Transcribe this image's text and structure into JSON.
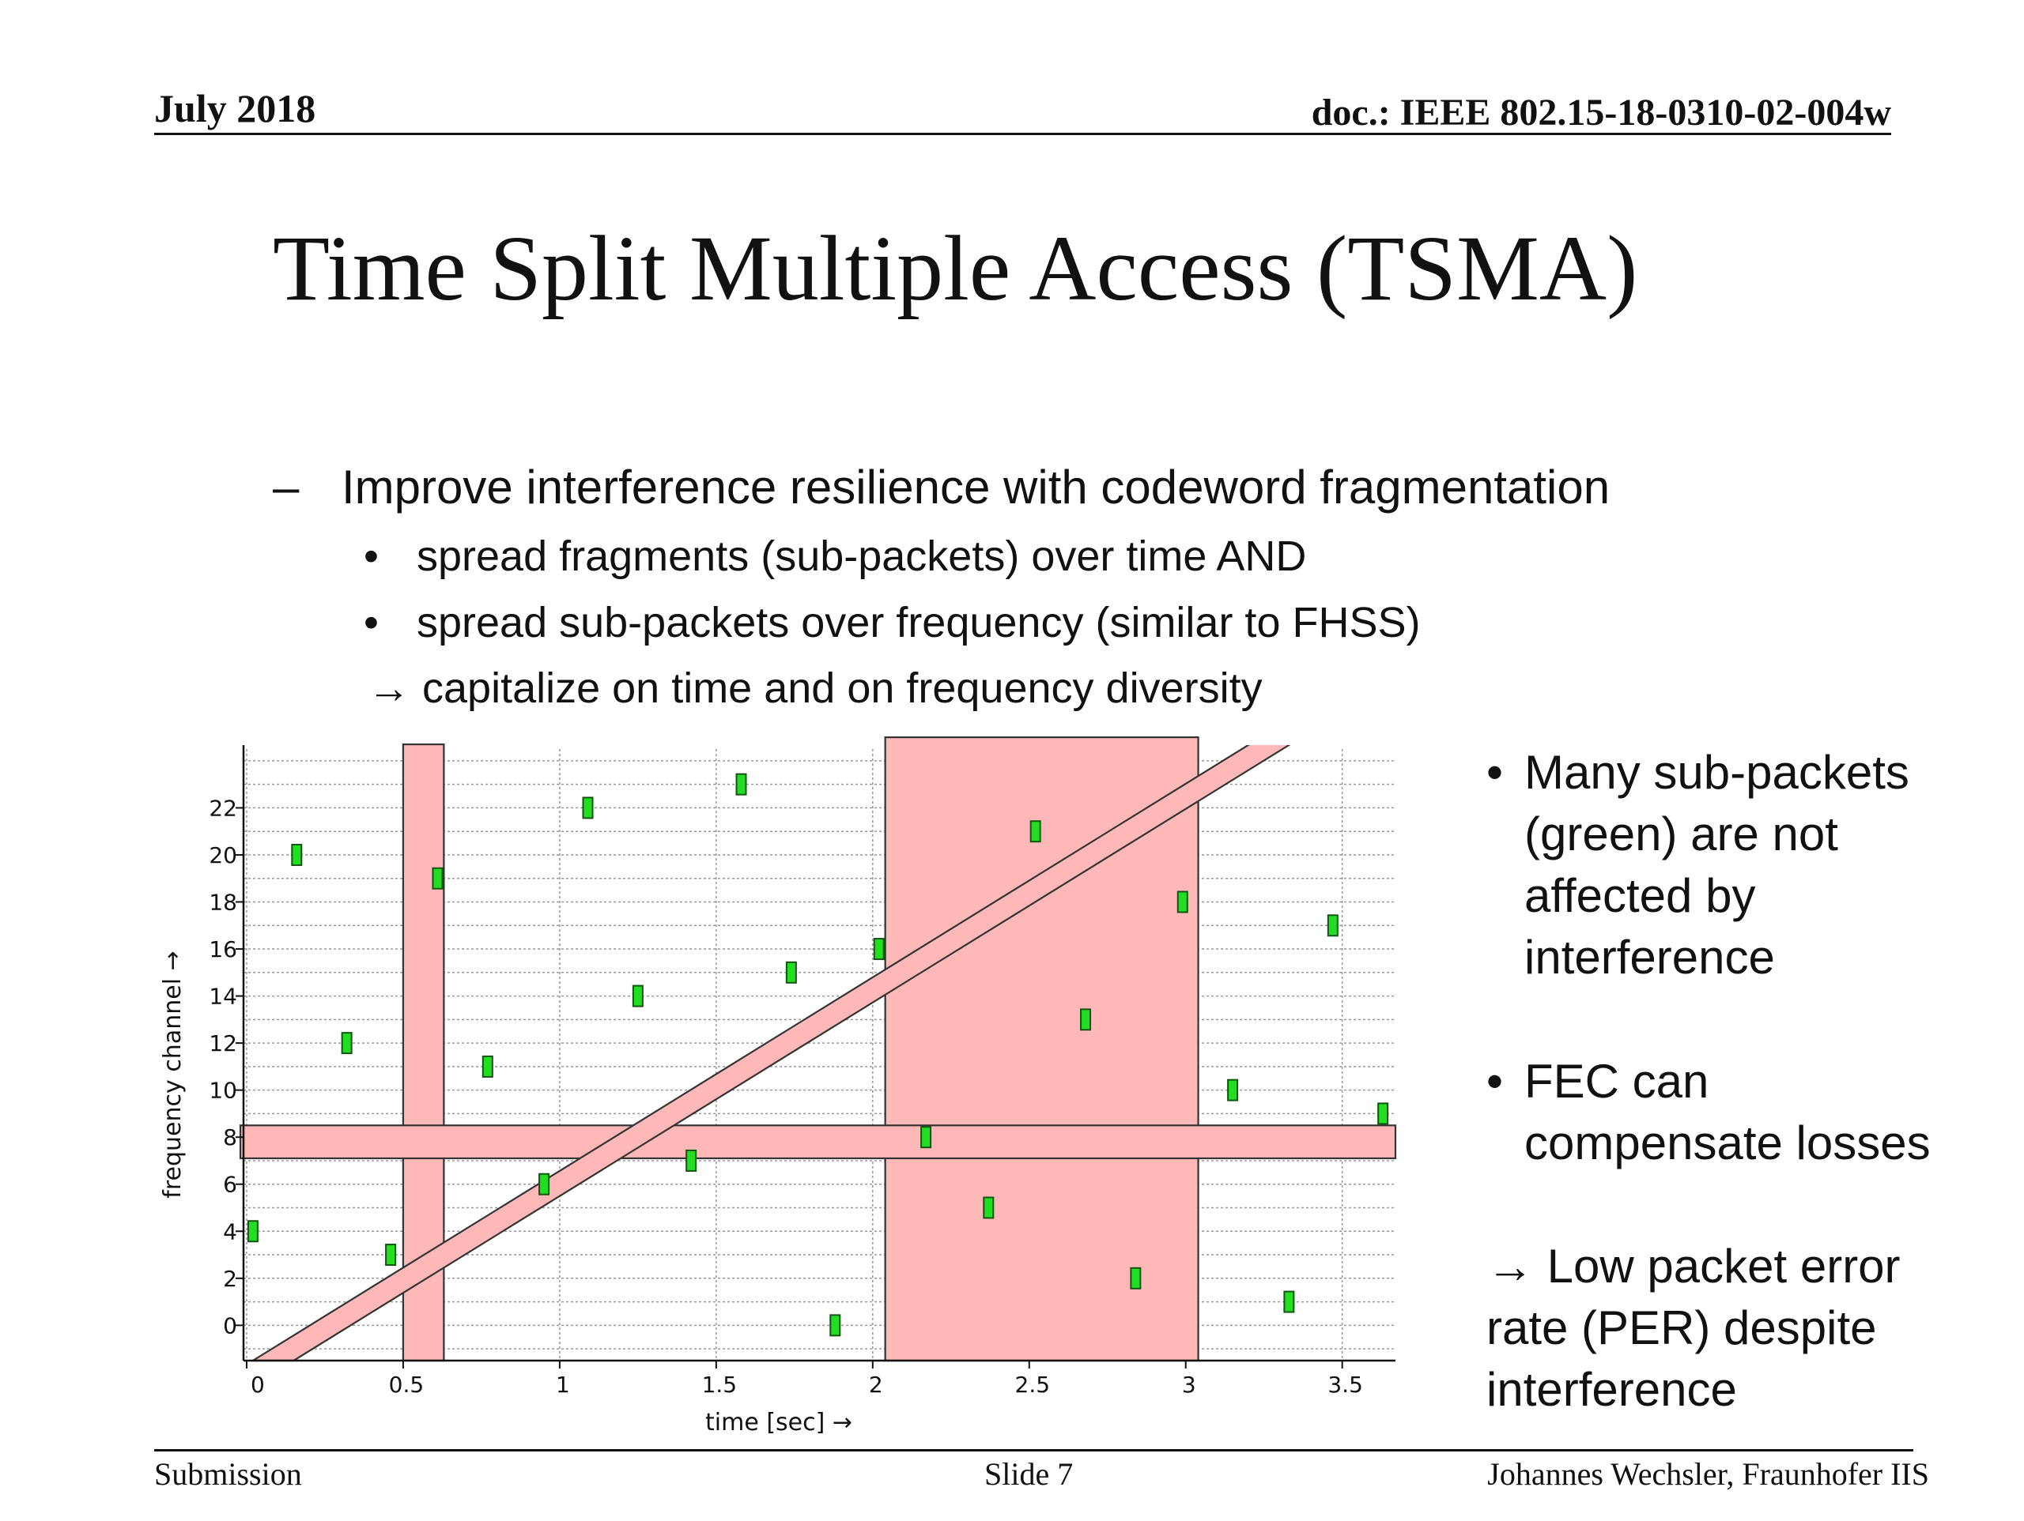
{
  "header": {
    "date": "July 2018",
    "doc": "doc.: IEEE 802.15-18-0310-02-004w"
  },
  "title": "Time Split Multiple Access (TSMA)",
  "bullets": {
    "l1_marker": "–",
    "l1": "Improve interference resilience with codeword fragmentation",
    "l2_marker": "•",
    "l2": [
      "spread fragments (sub-packets) over time AND",
      "spread sub-packets over frequency (similar to FHSS)"
    ],
    "l3": "→ capitalize on time and on frequency diversity"
  },
  "side_notes": {
    "marker": "•",
    "note1": [
      "Many sub-packets",
      "(green) are not",
      "affected by",
      "interference"
    ],
    "note2": [
      "FEC can",
      "compensate losses"
    ],
    "conclusion": [
      "→ Low packet error",
      "rate (PER) despite",
      "interference"
    ]
  },
  "chart_data": {
    "type": "scatter",
    "xlabel": "time [sec] →",
    "ylabel": "frequency channel →",
    "xlim": [
      -0.01,
      3.67
    ],
    "ylim": [
      -1.5,
      24.5
    ],
    "xticks": [
      0,
      0.5,
      1,
      1.5,
      2,
      2.5,
      3,
      3.5
    ],
    "xtick_labels": [
      "0",
      "0.5",
      "1",
      "1.5",
      "2",
      "2.5",
      "3",
      "3.5"
    ],
    "yticks": [
      0,
      2,
      4,
      6,
      8,
      10,
      12,
      14,
      16,
      18,
      20,
      22
    ],
    "ytick_labels": [
      "0",
      "2",
      "4",
      "6",
      "8",
      "10",
      "12",
      "14",
      "16",
      "18",
      "20",
      "22"
    ],
    "grid": true,
    "colors": {
      "subpacket_fill": "#22dd22",
      "subpacket_edge": "#115511",
      "interference_fill": "#ffb8b8",
      "interference_edge": "#333333",
      "grid": "#999999"
    },
    "series": [
      {
        "points": [
          [
            0.02,
            4
          ],
          [
            0.16,
            20
          ],
          [
            0.32,
            12
          ],
          [
            0.46,
            3
          ],
          [
            0.61,
            19
          ],
          [
            0.77,
            11
          ],
          [
            0.95,
            6
          ],
          [
            1.09,
            22
          ],
          [
            1.25,
            14
          ],
          [
            1.42,
            7
          ],
          [
            1.58,
            23
          ],
          [
            1.74,
            15
          ],
          [
            1.88,
            0
          ],
          [
            2.02,
            16
          ],
          [
            2.17,
            8
          ],
          [
            2.37,
            5
          ],
          [
            2.52,
            21
          ],
          [
            2.68,
            13
          ],
          [
            2.84,
            2
          ],
          [
            2.99,
            18
          ],
          [
            3.15,
            10
          ],
          [
            3.33,
            1
          ],
          [
            3.47,
            17
          ],
          [
            3.63,
            9
          ]
        ]
      }
    ],
    "interference": [
      {
        "kind": "time_band",
        "x0": 0.5,
        "x1": 0.63,
        "y0": -1.5,
        "y1": 24.7
      },
      {
        "kind": "time_band",
        "x0": 2.04,
        "x1": 3.04,
        "y0": -1.5,
        "y1": 25.0
      },
      {
        "kind": "frequency_band",
        "x0": -0.02,
        "x1": 3.67,
        "y0": 7.1,
        "y1": 8.5
      },
      {
        "kind": "sweep",
        "x_start": 0.02,
        "y_start": -1.5,
        "x_end": 3.24,
        "y_end": 25.0,
        "width_x": 0.13
      }
    ]
  },
  "footer": {
    "left": "Submission",
    "center": "Slide 7",
    "right": "Johannes Wechsler, Fraunhofer IIS"
  }
}
